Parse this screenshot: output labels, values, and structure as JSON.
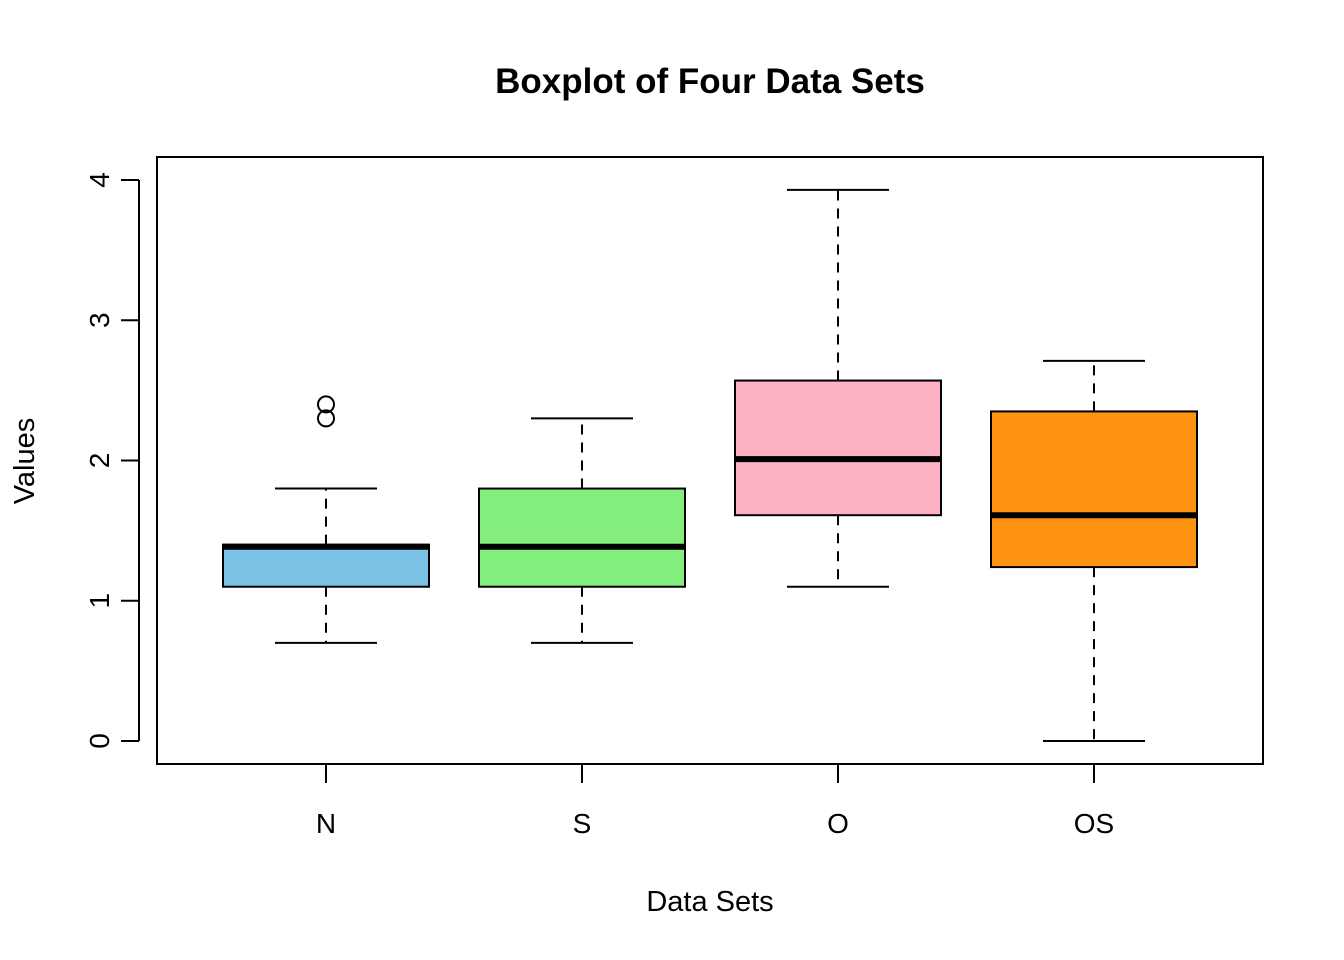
{
  "chart_data": {
    "type": "boxplot",
    "title": "Boxplot of Four Data Sets",
    "xlabel": "Data Sets",
    "ylabel": "Values",
    "ylim": [
      0,
      4
    ],
    "yticks": [
      0,
      1,
      2,
      3,
      4
    ],
    "grid": false,
    "categories": [
      "N",
      "S",
      "O",
      "OS"
    ],
    "boxes": [
      {
        "category": "N",
        "whisker_low": 0.7,
        "q1": 1.1,
        "median": 1.385,
        "q3": 1.4,
        "whisker_high": 1.8,
        "outliers": [
          2.3,
          2.4
        ],
        "color": "#7BC2E6"
      },
      {
        "category": "S",
        "whisker_low": 0.7,
        "q1": 1.1,
        "median": 1.385,
        "q3": 1.8,
        "whisker_high": 2.3,
        "outliers": [],
        "color": "#83EE7E"
      },
      {
        "category": "O",
        "whisker_low": 1.1,
        "q1": 1.61,
        "median": 2.01,
        "q3": 2.57,
        "whisker_high": 3.93,
        "outliers": [],
        "color": "#FDB1C3"
      },
      {
        "category": "OS",
        "whisker_low": 0.0,
        "q1": 1.24,
        "median": 1.61,
        "q3": 2.35,
        "whisker_high": 2.71,
        "outliers": [],
        "color": "#FD930E"
      }
    ]
  }
}
